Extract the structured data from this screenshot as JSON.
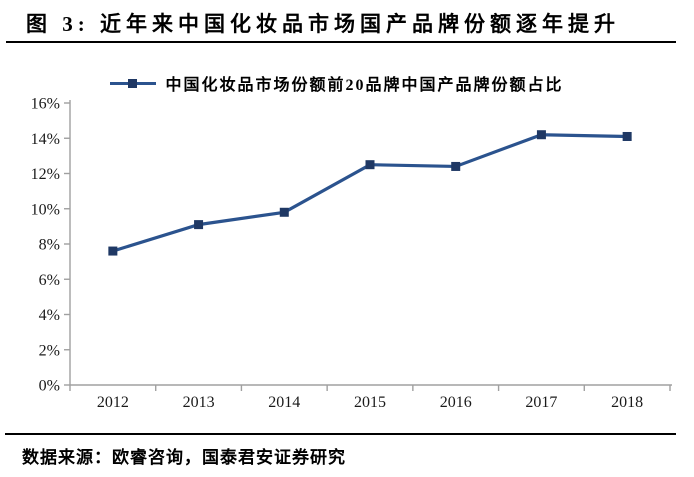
{
  "header": {
    "title": "图 3: 近年来中国化妆品市场国产品牌份额逐年提升"
  },
  "legend": {
    "label": "中国化妆品市场份额前20品牌中国产品牌份额占比"
  },
  "footer": {
    "source": "数据来源：欧睿咨询，国泰君安证券研究"
  },
  "chart_data": {
    "type": "line",
    "title": "",
    "categories": [
      "2012",
      "2013",
      "2014",
      "2015",
      "2016",
      "2017",
      "2018"
    ],
    "series": [
      {
        "name": "中国化妆品市场份额前20品牌中国产品牌份额占比",
        "values": [
          7.6,
          9.1,
          9.8,
          12.5,
          12.4,
          14.2,
          14.1
        ]
      }
    ],
    "xlabel": "",
    "ylabel": "",
    "ylim": [
      0,
      16
    ],
    "ytick_step": 2,
    "ytick_labels": [
      "0%",
      "2%",
      "4%",
      "6%",
      "8%",
      "10%",
      "12%",
      "14%",
      "16%"
    ],
    "grid": false,
    "legend_position": "top",
    "marker": "square",
    "colors": {
      "line": "#2b538e",
      "marker": "#1f3864",
      "axis": "#a0a0a0",
      "tick_label": "#1a1a1a"
    }
  }
}
